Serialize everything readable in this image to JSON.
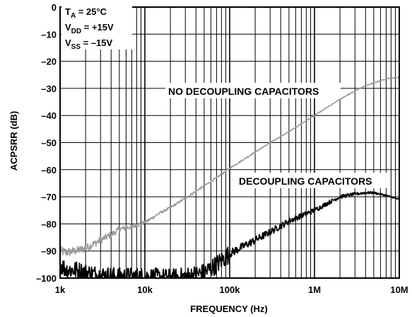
{
  "chart_data": {
    "type": "line",
    "xscale": "log",
    "xlim": [
      1000,
      10000000
    ],
    "ylim": [
      -100,
      0
    ],
    "xlabel": "FREQUENCY (Hz)",
    "ylabel": "ACPSRR (dB)",
    "grid": true,
    "x_ticks": [
      {
        "value": 1000,
        "label": "1k"
      },
      {
        "value": 10000,
        "label": "10k"
      },
      {
        "value": 100000,
        "label": "100k"
      },
      {
        "value": 1000000,
        "label": "1M"
      },
      {
        "value": 10000000,
        "label": "10M"
      }
    ],
    "y_ticks": [
      {
        "value": 0,
        "label": "0"
      },
      {
        "value": -10,
        "label": "–10"
      },
      {
        "value": -20,
        "label": "–20"
      },
      {
        "value": -30,
        "label": "–30"
      },
      {
        "value": -40,
        "label": "–40"
      },
      {
        "value": -50,
        "label": "–50"
      },
      {
        "value": -60,
        "label": "–60"
      },
      {
        "value": -70,
        "label": "–70"
      },
      {
        "value": -80,
        "label": "–80"
      },
      {
        "value": -90,
        "label": "–90"
      },
      {
        "value": -100,
        "label": "–100"
      }
    ],
    "conditions": {
      "ta": {
        "main": "T",
        "sub": "A",
        "rest": " = 25°C"
      },
      "vdd": {
        "main": "V",
        "sub": "DD",
        "rest": " = +15V"
      },
      "vss": {
        "main": "V",
        "sub": "SS",
        "rest": " = –15V"
      }
    },
    "series": [
      {
        "name": "NO DECOUPLING CAPACITORS",
        "color": "#9a9a9a",
        "x": [
          1000,
          1200,
          1500,
          2000,
          3000,
          4000,
          5000,
          7000,
          10000,
          15000,
          20000,
          30000,
          50000,
          70000,
          100000,
          150000,
          200000,
          300000,
          500000,
          700000,
          1000000,
          1500000,
          2000000,
          3000000,
          4000000,
          5000000,
          7000000,
          10000000
        ],
        "y": [
          -90,
          -90.5,
          -90,
          -89,
          -86,
          -84,
          -82,
          -81,
          -79.5,
          -76,
          -74,
          -70.5,
          -66,
          -63,
          -59.5,
          -56,
          -53.5,
          -50,
          -46,
          -43,
          -40,
          -36.5,
          -34,
          -31,
          -29,
          -28,
          -26.5,
          -26
        ]
      },
      {
        "name": "DECOUPLING CAPACITORS",
        "color": "#000000",
        "x": [
          1000,
          1200,
          1500,
          2000,
          3000,
          5000,
          7000,
          10000,
          20000,
          30000,
          50000,
          70000,
          100000,
          150000,
          200000,
          300000,
          500000,
          700000,
          1000000,
          1500000,
          2000000,
          3000000,
          4000000,
          5000000,
          7000000,
          10000000
        ],
        "y": [
          -95,
          -97,
          -97,
          -98,
          -99,
          -99.5,
          -99.5,
          -99.5,
          -100,
          -99.5,
          -98,
          -95,
          -91,
          -88,
          -86,
          -83,
          -79,
          -77,
          -75,
          -72,
          -70,
          -69,
          -68.5,
          -68.5,
          -69.5,
          -71
        ]
      }
    ],
    "annotations": [
      {
        "text": "NO DECOUPLING CAPACITORS",
        "series": 0
      },
      {
        "text": "DECOUPLING CAPACITORS",
        "series": 1
      }
    ]
  }
}
